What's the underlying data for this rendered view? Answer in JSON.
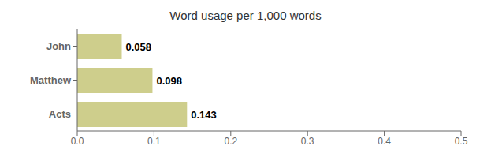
{
  "chart_data": {
    "type": "bar",
    "title": "Word usage per 1,000 words",
    "orientation": "horizontal",
    "categories": [
      "Acts",
      "Matthew",
      "John"
    ],
    "values": [
      0.143,
      0.098,
      0.058
    ],
    "color": "#cece8c",
    "xlim": [
      0.0,
      0.5
    ],
    "xticks": [
      {
        "value": 0.0,
        "label": "0.0"
      },
      0.1,
      0.2,
      0.3,
      0.4,
      0.5
    ],
    "data_labels": true,
    "grid": false
  }
}
